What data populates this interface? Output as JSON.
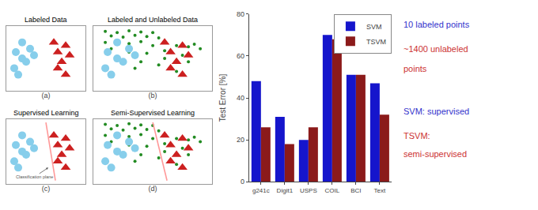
{
  "chart_data": [
    {
      "type": "scatter",
      "title": "Labeled Data",
      "xlabel": "(a)",
      "xlim": [
        0,
        10
      ],
      "ylim": [
        0,
        10
      ],
      "xticks": [],
      "yticks": [],
      "tick_labels": false,
      "grid": false,
      "series": [
        {
          "marker": "circle",
          "color": "#87CEEB",
          "x": [
            2.0,
            1.2,
            2.0,
            1.0,
            3.0,
            2.5,
            1.5,
            3.5
          ],
          "values": [
            7.5,
            6.0,
            5.0,
            3.5,
            6.5,
            4.5,
            2.5,
            5.5
          ]
        },
        {
          "marker": "triangle",
          "color": "#CC2020",
          "x": [
            6.0,
            7.5,
            6.5,
            7.0,
            8.0,
            6.5,
            7.5
          ],
          "values": [
            7.5,
            7.0,
            6.0,
            4.5,
            5.5,
            3.5,
            2.5
          ]
        }
      ]
    },
    {
      "type": "scatter",
      "title": "Labeled and Unlabeled Data",
      "xlabel": "(b)",
      "xlim": [
        0,
        10
      ],
      "ylim": [
        0,
        10
      ],
      "xticks": [],
      "yticks": [],
      "tick_labels": false,
      "grid": false,
      "series": [
        {
          "marker": "dot",
          "color": "#228B22",
          "x": [
            1.0,
            2.0,
            3.0,
            4.0,
            5.0,
            1.5,
            2.5,
            3.5,
            4.5,
            5.5,
            1.0,
            2.0,
            3.0,
            4.0,
            5.0,
            6.0,
            7.0,
            8.0,
            8.5,
            9.0,
            1.5,
            3.0,
            4.5,
            6.0,
            7.5,
            2.0,
            4.0,
            6.0,
            8.0,
            5.5,
            3.5,
            7.0
          ],
          "values": [
            9.2,
            9.0,
            9.3,
            9.1,
            9.0,
            8.5,
            8.3,
            8.6,
            8.4,
            8.2,
            7.5,
            7.8,
            7.3,
            7.6,
            7.0,
            7.5,
            7.0,
            6.8,
            7.2,
            6.5,
            6.5,
            6.0,
            5.8,
            6.2,
            5.5,
            5.0,
            4.5,
            5.0,
            4.5,
            4.0,
            3.5,
            3.0
          ]
        },
        {
          "marker": "circle",
          "color": "#87CEEB",
          "x": [
            2.0,
            1.2,
            2.0,
            1.0,
            3.0,
            2.5,
            1.5,
            3.5
          ],
          "values": [
            7.5,
            6.0,
            5.0,
            3.5,
            6.5,
            4.5,
            2.5,
            5.5
          ]
        },
        {
          "marker": "triangle",
          "color": "#CC2020",
          "x": [
            6.0,
            7.5,
            6.5,
            7.0,
            8.0,
            6.5,
            7.5
          ],
          "values": [
            7.5,
            7.0,
            6.0,
            4.5,
            5.5,
            3.5,
            2.5
          ]
        }
      ]
    },
    {
      "type": "scatter",
      "title": "Supervised Learning",
      "xlabel": "(c)",
      "xlim": [
        0,
        10
      ],
      "ylim": [
        0,
        10
      ],
      "xticks": [],
      "yticks": [],
      "tick_labels": false,
      "grid": false,
      "series": [
        {
          "type": "line",
          "color": "#FF9999",
          "x": [
            5.0,
            6.2
          ],
          "values": [
            9.5,
            0.5
          ]
        },
        {
          "marker": "circle",
          "color": "#87CEEB",
          "x": [
            2.0,
            1.2,
            2.0,
            1.0,
            3.0,
            2.5,
            1.5,
            3.5
          ],
          "values": [
            7.5,
            6.0,
            5.0,
            3.5,
            6.5,
            4.5,
            2.5,
            5.5
          ]
        },
        {
          "marker": "triangle",
          "color": "#CC2020",
          "x": [
            6.0,
            7.5,
            6.5,
            7.0,
            8.0,
            6.5,
            7.5
          ],
          "values": [
            7.5,
            7.0,
            6.0,
            4.5,
            5.5,
            3.5,
            2.5
          ]
        }
      ],
      "annotations": [
        {
          "text": "Classification plane",
          "x": 5.3,
          "y": 2.5
        }
      ]
    },
    {
      "type": "scatter",
      "title": "Semi-Supervised Learning",
      "xlabel": "(d)",
      "xlim": [
        0,
        10
      ],
      "ylim": [
        0,
        10
      ],
      "xticks": [],
      "yticks": [],
      "tick_labels": false,
      "grid": false,
      "series": [
        {
          "marker": "dot",
          "color": "#228B22",
          "x": [
            1.0,
            2.0,
            3.0,
            4.0,
            5.0,
            1.5,
            2.5,
            3.5,
            4.5,
            5.5,
            1.0,
            2.0,
            3.0,
            4.0,
            5.0,
            6.0,
            7.0,
            8.0,
            8.5,
            9.0,
            1.5,
            3.0,
            4.5,
            6.0,
            7.5,
            2.0,
            4.0,
            6.0,
            8.0,
            5.5,
            3.5,
            7.0
          ],
          "values": [
            9.2,
            9.0,
            9.3,
            9.1,
            9.0,
            8.5,
            8.3,
            8.6,
            8.4,
            8.2,
            7.5,
            7.8,
            7.3,
            7.6,
            7.0,
            7.5,
            7.0,
            6.8,
            7.2,
            6.5,
            6.5,
            6.0,
            5.8,
            6.2,
            5.5,
            5.0,
            4.5,
            5.0,
            4.5,
            4.0,
            3.5,
            3.0
          ]
        },
        {
          "type": "line",
          "color": "#FF9999",
          "x": [
            5.0,
            6.2
          ],
          "values": [
            9.5,
            0.5
          ]
        },
        {
          "marker": "circle",
          "color": "#87CEEB",
          "x": [
            2.0,
            1.2,
            2.0,
            1.0,
            3.0,
            2.5,
            1.5,
            3.5
          ],
          "values": [
            7.5,
            6.0,
            5.0,
            3.5,
            6.5,
            4.5,
            2.5,
            5.5
          ]
        },
        {
          "marker": "triangle",
          "color": "#CC2020",
          "x": [
            6.0,
            7.5,
            6.5,
            7.0,
            8.0,
            6.5,
            7.5
          ],
          "values": [
            7.5,
            7.0,
            6.0,
            4.5,
            5.5,
            3.5,
            2.5
          ]
        }
      ]
    },
    {
      "type": "bar",
      "categories": [
        "g241c",
        "Digit1",
        "USPS",
        "COIL",
        "BCI",
        "Text"
      ],
      "series": [
        {
          "name": "SVM",
          "color": "#1515CC",
          "values": [
            48,
            31,
            20,
            70,
            51,
            47
          ]
        },
        {
          "name": "TSVM",
          "color": "#8B1A1A",
          "values": [
            26,
            18,
            26,
            68,
            51,
            32
          ]
        }
      ],
      "ylabel": "Test Error [%]",
      "ylim": [
        0,
        80
      ],
      "yticks": [
        0,
        20,
        40,
        60,
        80
      ],
      "legend": "upper right",
      "grid": false,
      "annotations": [
        {
          "text": "10 labeled points",
          "color": "#3333CC"
        },
        {
          "text": "~1400 unlabeled",
          "color": "#CC3333"
        },
        {
          "text": "points",
          "color": "#CC3333"
        },
        {
          "text": "SVM: supervised",
          "color": "#3333CC"
        },
        {
          "text": "TSVM:",
          "color": "#CC3333"
        },
        {
          "text": "semi-supervised",
          "color": "#CC3333"
        }
      ]
    }
  ]
}
